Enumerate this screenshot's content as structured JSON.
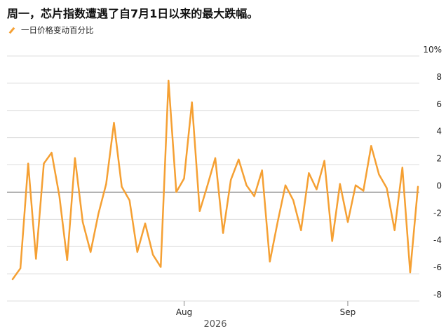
{
  "title": "周一，芯片指数遭遇了自7月1日以来的最大跌幅。",
  "legend": {
    "label": "一日价格变动百分比"
  },
  "colors": {
    "series": "#f5a033",
    "zero_line": "#666666",
    "grid": "#dcdcdc"
  },
  "chart_data": {
    "type": "line",
    "title": "周一，芯片指数遭遇了自7月1日以来的最大跌幅。",
    "xlabel": "2026",
    "ylabel": "",
    "ylim": [
      -8,
      10
    ],
    "yticks": [
      10,
      8,
      6,
      4,
      2,
      0,
      -2,
      -4,
      -6,
      -8
    ],
    "ytick_labels": [
      "10%",
      "8",
      "6",
      "4",
      "2",
      "0",
      "-2",
      "-4",
      "-6",
      "-8"
    ],
    "xtick_labels": [
      "Aug",
      "Sep"
    ],
    "xtick_positions": [
      22,
      43
    ],
    "grid": true,
    "series": [
      {
        "name": "一日价格变动百分比",
        "values": [
          -6.4,
          -5.6,
          2.1,
          -4.9,
          2.1,
          2.9,
          -0.3,
          -5.0,
          2.5,
          -2.2,
          -4.4,
          -1.6,
          0.6,
          5.1,
          0.4,
          -0.6,
          -4.4,
          -2.3,
          -4.6,
          -5.5,
          8.2,
          0.0,
          1.0,
          6.6,
          -1.4,
          0.5,
          2.5,
          -3.0,
          0.9,
          2.4,
          0.5,
          -0.3,
          1.6,
          -5.1,
          -2.2,
          0.5,
          -0.6,
          -2.8,
          1.4,
          0.2,
          2.3,
          -3.6,
          0.6,
          -2.2,
          0.5,
          0.1,
          3.4,
          1.3,
          0.3,
          -2.8,
          1.8,
          -5.9,
          0.4
        ]
      }
    ]
  }
}
